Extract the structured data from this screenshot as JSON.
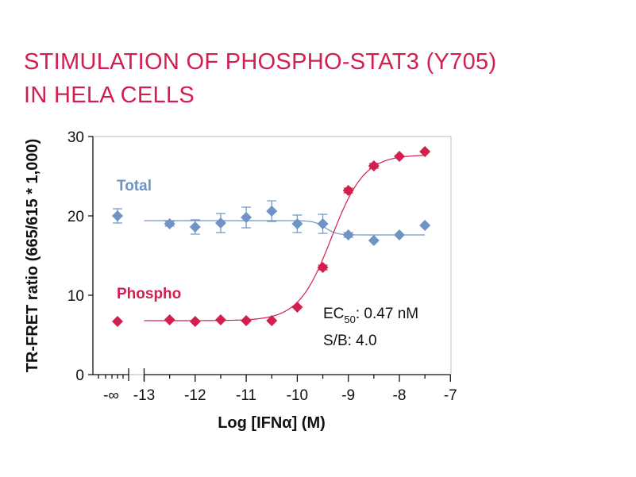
{
  "title": {
    "line1": "STIMULATION OF PHOSPHO-STAT3 (Y705)",
    "line2": "IN HELA CELLS"
  },
  "colors": {
    "title": "#d11f4f",
    "phospho": "#d11f4f",
    "total": "#6f93c4",
    "axis": "#111111",
    "frame": "#bbbbbb"
  },
  "chart_data": {
    "type": "scatter",
    "xlabel": "Log [IFNα] (M)",
    "ylabel": "TR-FRET ratio (665/615 * 1,000)",
    "ylim": [
      0,
      30
    ],
    "xlim": [
      -13,
      -7
    ],
    "yticks": [
      0,
      10,
      20,
      30
    ],
    "xticks": [
      -13,
      -12,
      -11,
      -10,
      -9,
      -8,
      -7
    ],
    "xtick_labels": [
      "-13",
      "-12",
      "-11",
      "-10",
      "-9",
      "-8",
      "-7"
    ],
    "neg_inf_label": "-∞",
    "axis_break": true,
    "grid": false,
    "series": [
      {
        "name": "Total",
        "color": "#6f93c4",
        "neg_inf_point": {
          "y": 20.0,
          "err": 0.9
        },
        "points": [
          {
            "x": -12.5,
            "y": 19.0,
            "err": 0.3
          },
          {
            "x": -12.0,
            "y": 18.6,
            "err": 0.9
          },
          {
            "x": -11.5,
            "y": 19.1,
            "err": 1.2
          },
          {
            "x": -11.0,
            "y": 19.8,
            "err": 1.3
          },
          {
            "x": -10.5,
            "y": 20.6,
            "err": 1.3
          },
          {
            "x": -10.0,
            "y": 19.0,
            "err": 1.1
          },
          {
            "x": -9.5,
            "y": 19.0,
            "err": 1.2
          },
          {
            "x": -9.0,
            "y": 17.6,
            "err": 0.3
          },
          {
            "x": -8.5,
            "y": 16.9,
            "err": 0.2
          },
          {
            "x": -8.0,
            "y": 17.6,
            "err": 0.2
          },
          {
            "x": -7.5,
            "y": 18.8,
            "err": 0.2
          }
        ],
        "fit": {
          "bottom": 19.4,
          "top": 17.6,
          "logec50": -9.45,
          "hill": 4.0
        }
      },
      {
        "name": "Phospho",
        "color": "#d11f4f",
        "neg_inf_point": {
          "y": 6.7,
          "err": 0.2
        },
        "points": [
          {
            "x": -12.5,
            "y": 6.9,
            "err": 0.2
          },
          {
            "x": -12.0,
            "y": 6.7,
            "err": 0.2
          },
          {
            "x": -11.5,
            "y": 6.9,
            "err": 0.2
          },
          {
            "x": -11.0,
            "y": 6.8,
            "err": 0.2
          },
          {
            "x": -10.5,
            "y": 6.8,
            "err": 0.2
          },
          {
            "x": -10.0,
            "y": 8.5,
            "err": 0.2
          },
          {
            "x": -9.5,
            "y": 13.5,
            "err": 0.3
          },
          {
            "x": -9.0,
            "y": 23.2,
            "err": 0.3
          },
          {
            "x": -8.5,
            "y": 26.3,
            "err": 0.3
          },
          {
            "x": -8.0,
            "y": 27.5,
            "err": 0.2
          },
          {
            "x": -7.5,
            "y": 28.1,
            "err": 0.2
          }
        ],
        "fit": {
          "bottom": 6.8,
          "top": 27.7,
          "logec50": -9.33,
          "hill": 1.35
        }
      }
    ],
    "annotations": {
      "ec50_prefix": "EC",
      "ec50_sub": "50",
      "ec50_value": ": 0.47 nM",
      "sb": "S/B: 4.0"
    }
  }
}
